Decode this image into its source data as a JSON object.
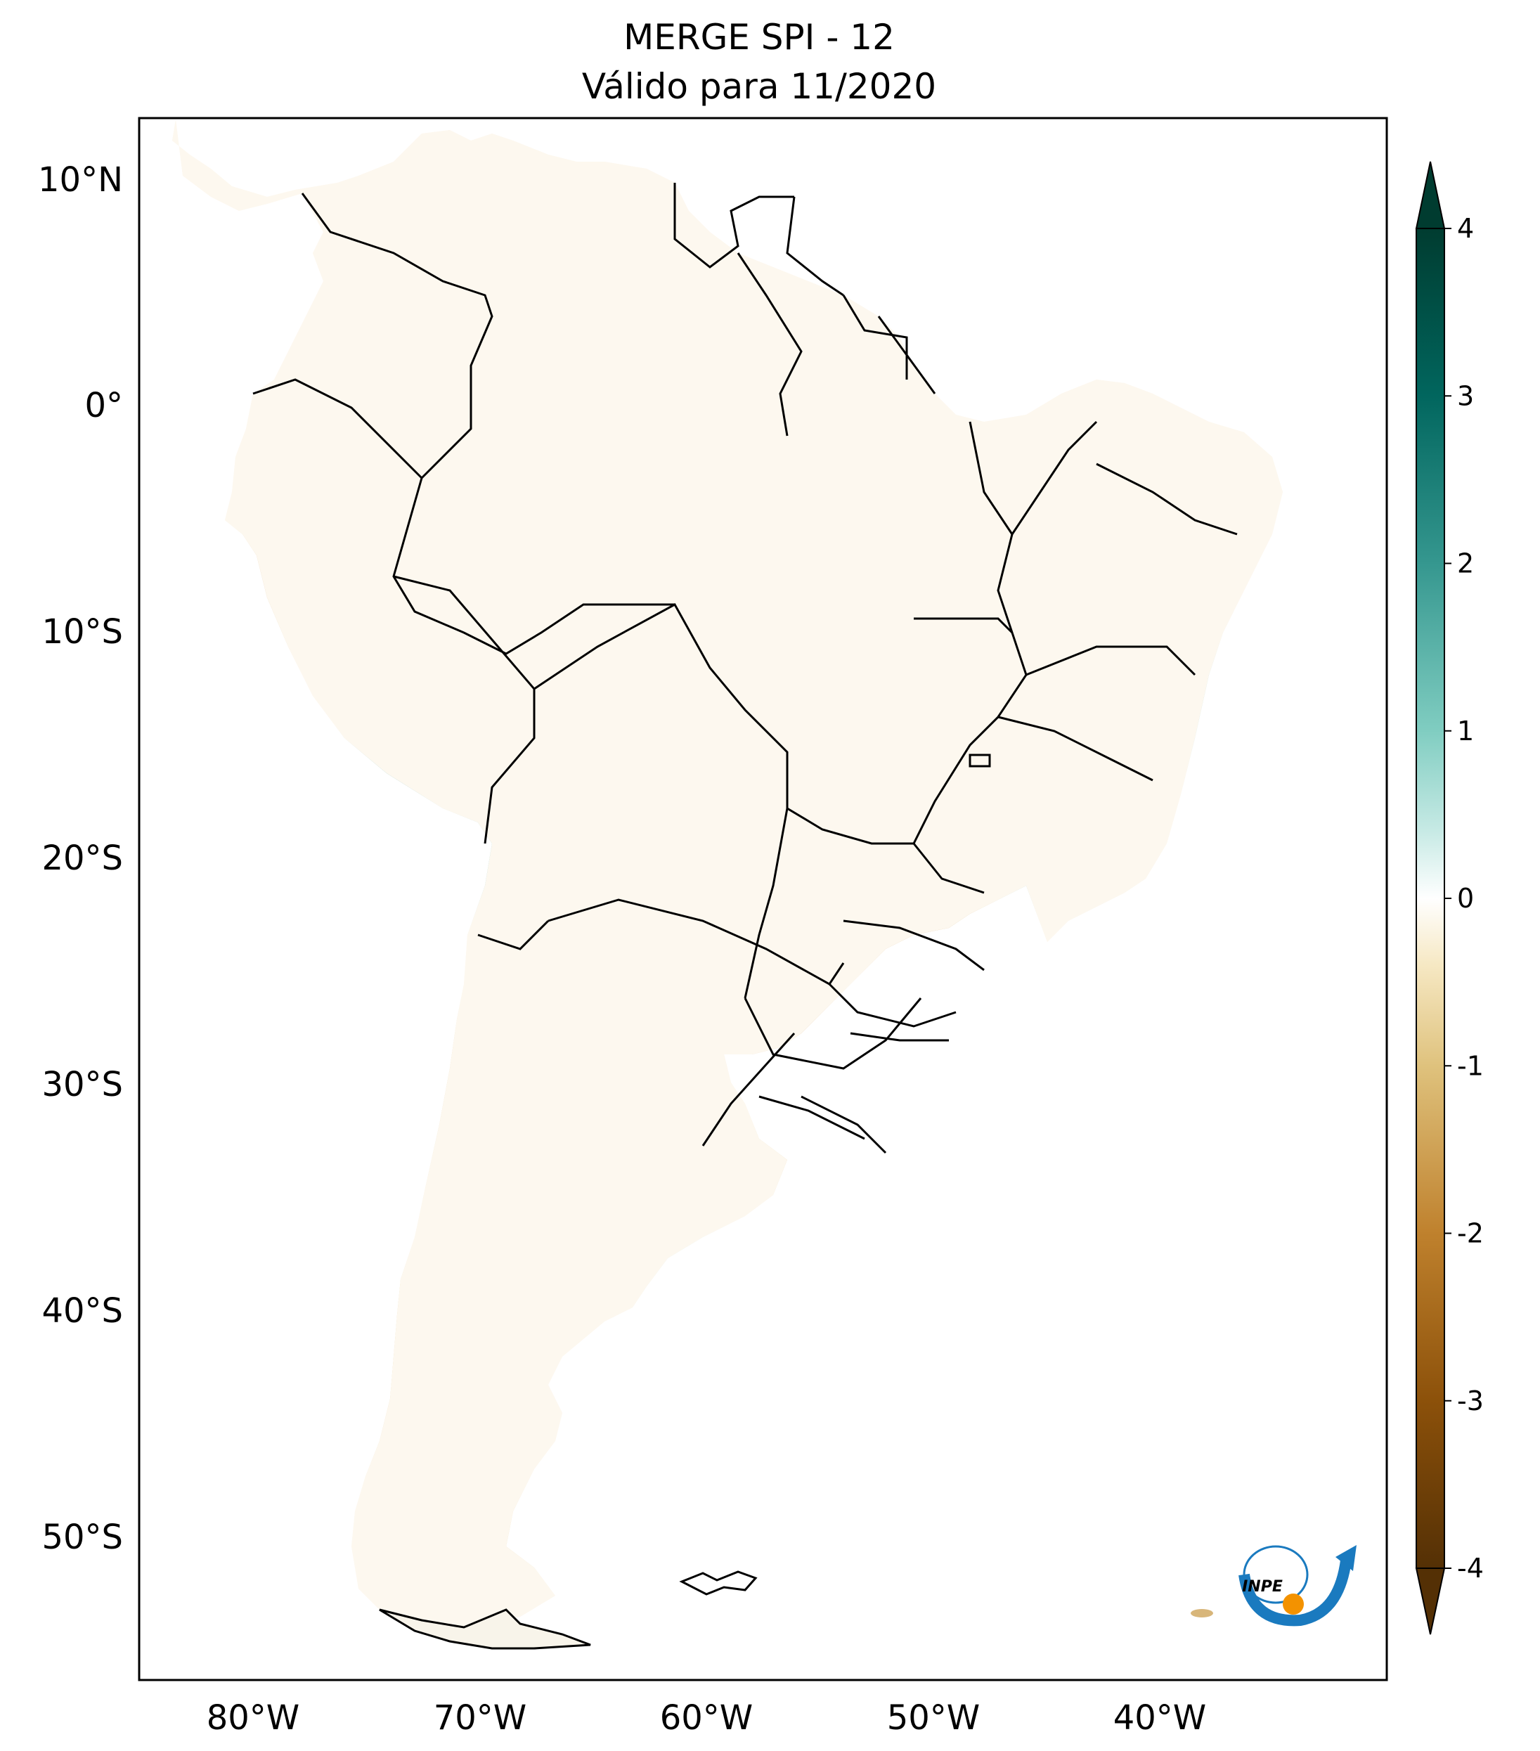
{
  "title": {
    "line1": "MERGE   SPI - 12",
    "line2": "Válido para 11/2020"
  },
  "map": {
    "lat_range": [
      -56,
      12.5
    ],
    "lon_range": [
      -85,
      -30
    ],
    "lat_ticks": [
      {
        "value": 10,
        "label": "10°N"
      },
      {
        "value": 0,
        "label": "0°"
      },
      {
        "value": -10,
        "label": "10°S"
      },
      {
        "value": -20,
        "label": "20°S"
      },
      {
        "value": -30,
        "label": "30°S"
      },
      {
        "value": -40,
        "label": "40°S"
      },
      {
        "value": -50,
        "label": "50°S"
      }
    ],
    "lon_ticks": [
      {
        "value": -80,
        "label": "80°W"
      },
      {
        "value": -70,
        "label": "70°W"
      },
      {
        "value": -60,
        "label": "60°W"
      },
      {
        "value": -50,
        "label": "50°W"
      },
      {
        "value": -40,
        "label": "40°W"
      }
    ]
  },
  "colorbar": {
    "min": -4,
    "max": 4,
    "ticks": [
      4,
      3,
      2,
      1,
      0,
      -1,
      -2,
      -3,
      -4
    ],
    "tick_labels": [
      "4",
      "3",
      "2",
      "1",
      "0",
      "-1",
      "-2",
      "-3",
      "-4"
    ],
    "colors": {
      "dry_extreme": "#543005",
      "dry_strong": "#8c510a",
      "dry_moderate": "#bf812d",
      "dry_mild": "#dfc27d",
      "dry_slight": "#f6e8c3",
      "neutral": "#ffffff",
      "wet_slight": "#c7eae5",
      "wet_mild": "#80cdc1",
      "wet_moderate": "#35978f",
      "wet_strong": "#01665e",
      "wet_extreme": "#003c30"
    }
  },
  "logo": {
    "text": "INPE",
    "colors": {
      "arrow": "#1a7abf",
      "dot": "#f39200"
    }
  }
}
